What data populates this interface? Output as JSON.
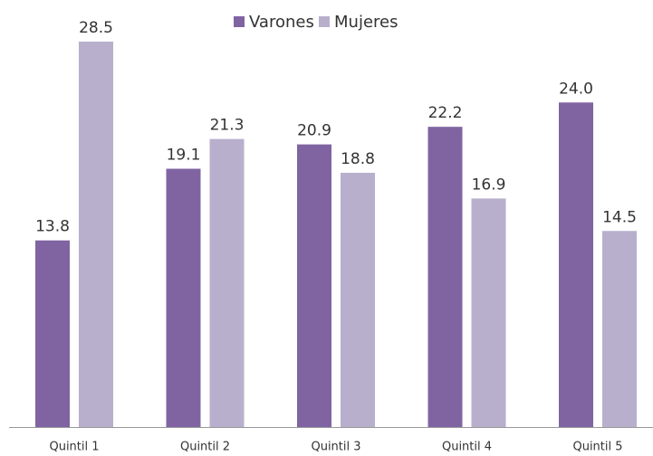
{
  "chart_data": {
    "type": "bar",
    "categories": [
      "Quintil 1",
      "Quintil 2",
      "Quintil 3",
      "Quintil 4",
      "Quintil 5"
    ],
    "series": [
      {
        "name": "Varones",
        "color": "#8064a2",
        "values": [
          13.8,
          19.1,
          20.9,
          22.2,
          24.0
        ],
        "value_labels": [
          "13.8",
          "19.1",
          "20.9",
          "22.2",
          "24.0"
        ]
      },
      {
        "name": "Mujeres",
        "color": "#b8afcc",
        "values": [
          28.5,
          21.3,
          18.8,
          16.9,
          14.5
        ],
        "value_labels": [
          "28.5",
          "21.3",
          "18.8",
          "16.9",
          "14.5"
        ]
      }
    ],
    "legend": "top"
  }
}
